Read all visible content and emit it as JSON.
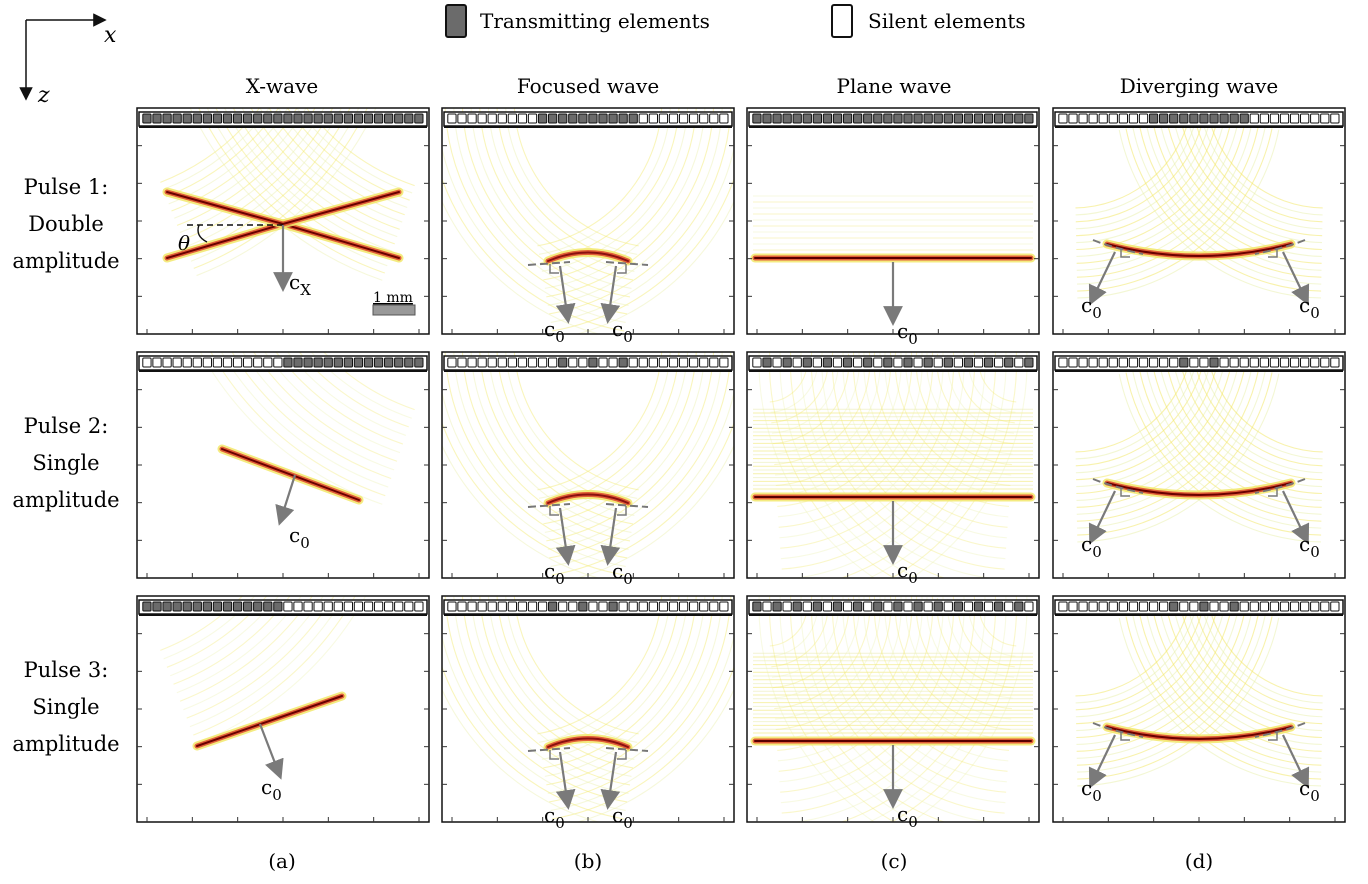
{
  "axes_indicator": {
    "x_label": "x",
    "z_label": "z"
  },
  "legend": {
    "transmitting_label": "Transmitting elements",
    "silent_label": "Silent elements",
    "transmit_color": "#6b6b6b",
    "silent_color": "#ffffff"
  },
  "columns": [
    {
      "title": "X-wave",
      "caption": "(a)"
    },
    {
      "title": "Focused wave",
      "caption": "(b)"
    },
    {
      "title": "Plane wave",
      "caption": "(c)"
    },
    {
      "title": "Diverging wave",
      "caption": "(d)"
    }
  ],
  "rows": [
    {
      "line1": "Pulse 1:",
      "line2": "Double",
      "line3": "amplitude"
    },
    {
      "line1": "Pulse 2:",
      "line2": "Single",
      "line3": "amplitude"
    },
    {
      "line1": "Pulse 3:",
      "line2": "Single",
      "line3": "amplitude"
    }
  ],
  "annotations": {
    "theta": "θ",
    "c_x_base": "c",
    "c_x_sub": "X",
    "c0_base": "c",
    "c0_sub": "0",
    "scale_bar": "1 mm"
  },
  "colors": {
    "arrow": "#7a7a7a",
    "wave_core": "#8b0000",
    "wave_hot": "#d62020",
    "wave_fringe": "#e8e840"
  }
}
